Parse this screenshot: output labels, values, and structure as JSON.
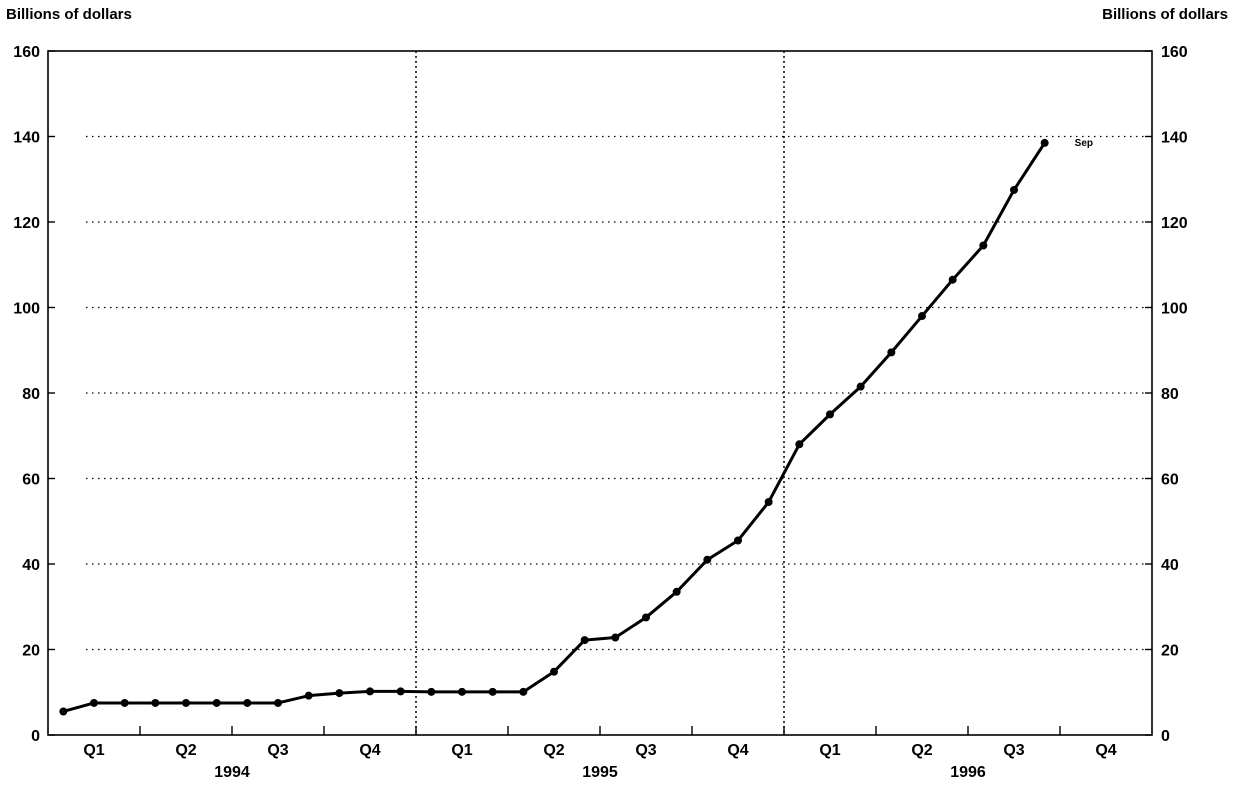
{
  "chart_data": {
    "type": "line",
    "ylabel_left": "Billions of dollars",
    "ylabel_right": "Billions of dollars",
    "ylim": [
      0,
      160
    ],
    "yticks": [
      0,
      20,
      40,
      60,
      80,
      100,
      120,
      140,
      160
    ],
    "xlim": [
      "1994-01",
      "1996-12"
    ],
    "quarter_labels": [
      "Q1",
      "Q2",
      "Q3",
      "Q4",
      "Q1",
      "Q2",
      "Q3",
      "Q4",
      "Q1",
      "Q2",
      "Q3",
      "Q4"
    ],
    "year_labels": [
      "1994",
      "1995",
      "1996"
    ],
    "grid": "dotted horizontal; dotted vertical year separators",
    "series": [
      {
        "x": [
          "1994-01",
          "1994-02",
          "1994-03",
          "1994-04",
          "1994-05",
          "1994-06",
          "1994-07",
          "1994-08",
          "1994-09",
          "1994-10",
          "1994-11",
          "1994-12",
          "1995-01",
          "1995-02",
          "1995-03",
          "1995-04",
          "1995-05",
          "1995-06",
          "1995-07",
          "1995-08",
          "1995-09",
          "1995-10",
          "1995-11",
          "1995-12",
          "1996-01",
          "1996-02",
          "1996-03",
          "1996-04",
          "1996-05",
          "1996-06",
          "1996-07",
          "1996-08",
          "1996-09"
        ],
        "values": [
          5.5,
          7.5,
          7.5,
          7.5,
          7.5,
          7.5,
          7.5,
          7.5,
          9.2,
          9.8,
          10.2,
          10.2,
          10.1,
          10.1,
          10.1,
          10.1,
          14.8,
          22.2,
          22.8,
          27.5,
          33.5,
          41.0,
          45.5,
          54.5,
          68.0,
          75.0,
          81.5,
          89.5,
          98.0,
          106.5,
          114.5,
          127.5,
          138.5
        ]
      }
    ],
    "annotations": [
      {
        "text": "Sep",
        "x": "1996-09",
        "y": 138.5
      }
    ]
  }
}
